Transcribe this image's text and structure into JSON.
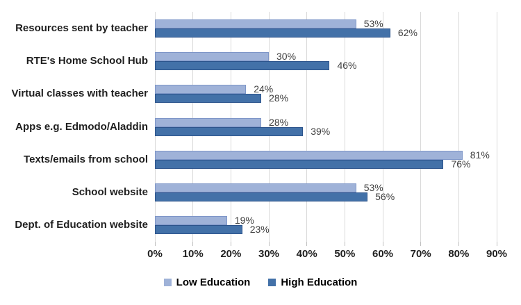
{
  "chart_data": {
    "type": "bar",
    "orientation": "horizontal",
    "title": "",
    "xlabel": "",
    "ylabel": "",
    "categories": [
      "Resources sent by teacher",
      "RTE's Home School Hub",
      "Virtual classes with teacher",
      "Apps e.g. Edmodo/Aladdin",
      "Texts/emails from school",
      "School website",
      "Dept. of Education website"
    ],
    "series": [
      {
        "name": "Low Education",
        "color": "#9FB2D8",
        "border_color": "#7E96C8",
        "values": [
          53,
          30,
          24,
          28,
          81,
          53,
          19
        ]
      },
      {
        "name": "High Education",
        "color": "#4371A8",
        "border_color": "#2D548C",
        "values": [
          62,
          46,
          28,
          39,
          76,
          56,
          23
        ]
      }
    ],
    "data_label_format": "{v}%",
    "x_axis": {
      "min": 0,
      "max": 90,
      "step": 10,
      "tick_labels": [
        "0%",
        "10%",
        "20%",
        "30%",
        "40%",
        "50%",
        "60%",
        "70%",
        "80%",
        "90%"
      ]
    },
    "grid": true,
    "legend_position": "bottom"
  },
  "styles": {
    "background": "#FFFFFF",
    "gridline_color": "#D9D9D9",
    "tick_color": "#BFBFBF",
    "label_color": "#1F1F1F",
    "data_label_color": "#404040"
  }
}
